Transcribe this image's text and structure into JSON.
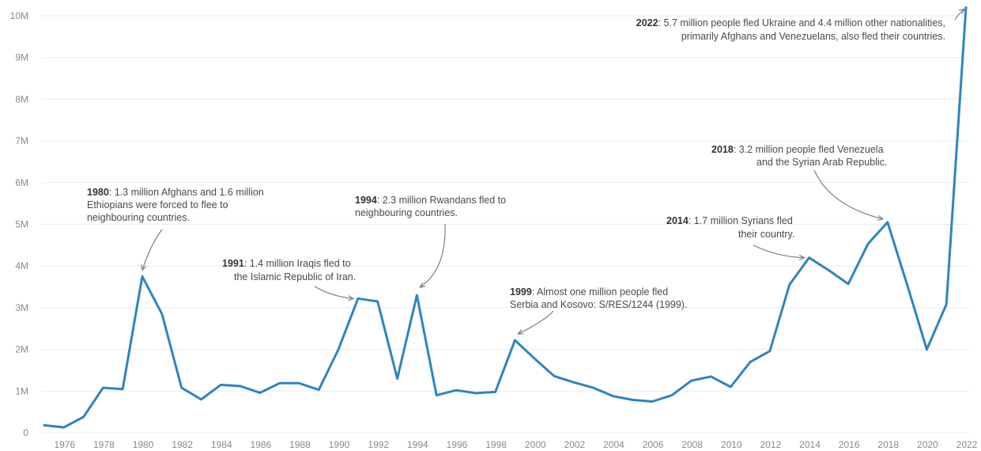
{
  "chart_data": {
    "type": "line",
    "title": "",
    "xlabel": "",
    "ylabel": "",
    "ylim": [
      0,
      10000000
    ],
    "xlim": [
      1975,
      2022
    ],
    "grid": true,
    "legend": "none",
    "y_tick_values": [
      0,
      1000000,
      2000000,
      3000000,
      4000000,
      5000000,
      6000000,
      7000000,
      8000000,
      9000000,
      10000000
    ],
    "y_tick_labels": [
      "0",
      "1M",
      "2M",
      "3M",
      "4M",
      "5M",
      "6M",
      "7M",
      "8M",
      "9M",
      "10M"
    ],
    "x_tick_labels": [
      "1976",
      "1978",
      "1980",
      "1982",
      "1984",
      "1986",
      "1988",
      "1990",
      "1992",
      "1994",
      "1996",
      "1998",
      "2000",
      "2002",
      "2004",
      "2006",
      "2008",
      "2010",
      "2012",
      "2014",
      "2016",
      "2018",
      "2020",
      "2022"
    ],
    "series": [
      {
        "color": "#2f84c1",
        "x": [
          1975,
          1976,
          1977,
          1978,
          1979,
          1980,
          1981,
          1982,
          1983,
          1984,
          1985,
          1986,
          1987,
          1988,
          1989,
          1990,
          1991,
          1992,
          1993,
          1994,
          1995,
          1996,
          1997,
          1998,
          1999,
          2000,
          2001,
          2002,
          2003,
          2004,
          2005,
          2006,
          2007,
          2008,
          2009,
          2010,
          2011,
          2012,
          2013,
          2014,
          2015,
          2016,
          2017,
          2018,
          2019,
          2020,
          2021,
          2022
        ],
        "values": [
          180000,
          130000,
          380000,
          1080000,
          1050000,
          3750000,
          2850000,
          1080000,
          800000,
          1150000,
          1120000,
          960000,
          1190000,
          1190000,
          1030000,
          2000000,
          3220000,
          3150000,
          1300000,
          3300000,
          900000,
          1020000,
          950000,
          980000,
          2220000,
          1780000,
          1360000,
          1210000,
          1080000,
          880000,
          790000,
          750000,
          900000,
          1250000,
          1350000,
          1100000,
          1700000,
          1960000,
          3550000,
          4200000,
          3900000,
          3570000,
          4530000,
          5050000,
          3550000,
          2000000,
          3080000,
          10200000
        ]
      }
    ],
    "annotations": [
      {
        "id": "a1980",
        "year": "1980",
        "text": ": 1.3 million Afghans and 1.6 million",
        "lines": [
          "Ethiopians were forced to flee to",
          "neighbouring countries."
        ]
      },
      {
        "id": "a1991",
        "year": "1991",
        "text": ": 1.4 million Iraqis fled to",
        "lines": [
          "the Islamic Republic of Iran."
        ]
      },
      {
        "id": "a1994",
        "year": "1994",
        "text": ": 2.3 million Rwandans fled to",
        "lines": [
          "neighbouring countries."
        ]
      },
      {
        "id": "a1999",
        "year": "1999",
        "text": ": Almost one million people fled",
        "lines": [
          "Serbia and Kosovo: S/RES/1244 (1999)."
        ]
      },
      {
        "id": "a2014",
        "year": "2014",
        "text": ": 1.7 million Syrians fled",
        "lines": [
          "their country."
        ]
      },
      {
        "id": "a2018",
        "year": "2018",
        "text": ": 3.2 million people fled Venezuela",
        "lines": [
          "and the Syrian Arab Republic."
        ]
      },
      {
        "id": "a2022",
        "year": "2022",
        "text": ": 5.7 million people fled Ukraine and 4.4 million other nationalities,",
        "lines": [
          "primarily Afghans and Venezuelans, also fled their countries."
        ]
      }
    ]
  }
}
